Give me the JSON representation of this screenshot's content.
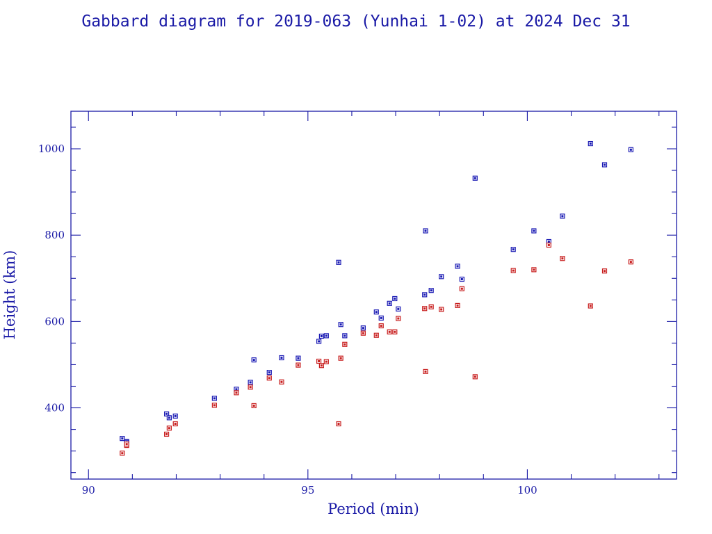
{
  "chart_data": {
    "type": "scatter",
    "title": "Gabbard diagram for 2019-063 (Yunhai 1-02) at 2024 Dec 31",
    "xlabel": "Period (min)",
    "ylabel": "Height (km)",
    "xlim": [
      89.6,
      103.4
    ],
    "ylim": [
      235,
      1087
    ],
    "xticks": [
      90,
      95,
      100
    ],
    "yticks": [
      400,
      600,
      800,
      1000
    ],
    "grid": false,
    "colors": {
      "axes": "#1a1aa6",
      "apogee": "#1a1ab4",
      "perigee": "#c81e1e"
    },
    "series": [
      {
        "marker": "apogee",
        "points": [
          [
            90.77,
            329
          ],
          [
            90.87,
            322
          ],
          [
            90.87,
            320
          ],
          [
            91.78,
            386
          ],
          [
            91.84,
            377
          ],
          [
            91.98,
            381
          ],
          [
            92.87,
            422
          ],
          [
            93.37,
            443
          ],
          [
            93.69,
            459
          ],
          [
            93.77,
            511
          ],
          [
            94.12,
            482
          ],
          [
            94.4,
            516
          ],
          [
            94.78,
            515
          ],
          [
            95.25,
            554
          ],
          [
            95.31,
            566
          ],
          [
            95.42,
            567
          ],
          [
            95.7,
            737
          ],
          [
            95.75,
            593
          ],
          [
            95.84,
            567
          ],
          [
            96.26,
            585
          ],
          [
            96.56,
            622
          ],
          [
            96.67,
            608
          ],
          [
            96.86,
            642
          ],
          [
            96.98,
            653
          ],
          [
            97.06,
            629
          ],
          [
            97.66,
            662
          ],
          [
            97.68,
            810
          ],
          [
            97.81,
            672
          ],
          [
            98.04,
            704
          ],
          [
            98.41,
            728
          ],
          [
            98.51,
            698
          ],
          [
            98.81,
            932
          ],
          [
            99.68,
            767
          ],
          [
            100.15,
            810
          ],
          [
            100.49,
            785
          ],
          [
            100.8,
            844
          ],
          [
            101.44,
            1012
          ],
          [
            101.76,
            963
          ],
          [
            102.36,
            998
          ]
        ]
      },
      {
        "marker": "perigee",
        "points": [
          [
            90.77,
            295
          ],
          [
            90.87,
            313
          ],
          [
            90.87,
            316
          ],
          [
            91.78,
            339
          ],
          [
            91.84,
            353
          ],
          [
            91.98,
            363
          ],
          [
            92.87,
            406
          ],
          [
            93.37,
            435
          ],
          [
            93.69,
            448
          ],
          [
            93.77,
            405
          ],
          [
            94.12,
            469
          ],
          [
            94.4,
            460
          ],
          [
            94.78,
            499
          ],
          [
            95.25,
            508
          ],
          [
            95.31,
            498
          ],
          [
            95.42,
            507
          ],
          [
            95.7,
            363
          ],
          [
            95.75,
            515
          ],
          [
            95.84,
            547
          ],
          [
            96.26,
            573
          ],
          [
            96.56,
            568
          ],
          [
            96.67,
            590
          ],
          [
            96.86,
            576
          ],
          [
            96.98,
            576
          ],
          [
            97.06,
            607
          ],
          [
            97.66,
            630
          ],
          [
            97.68,
            484
          ],
          [
            97.81,
            634
          ],
          [
            98.04,
            628
          ],
          [
            98.41,
            637
          ],
          [
            98.51,
            676
          ],
          [
            98.81,
            472
          ],
          [
            99.68,
            718
          ],
          [
            100.15,
            720
          ],
          [
            100.49,
            777
          ],
          [
            100.8,
            746
          ],
          [
            101.44,
            636
          ],
          [
            101.76,
            717
          ],
          [
            102.36,
            738
          ]
        ]
      }
    ]
  }
}
